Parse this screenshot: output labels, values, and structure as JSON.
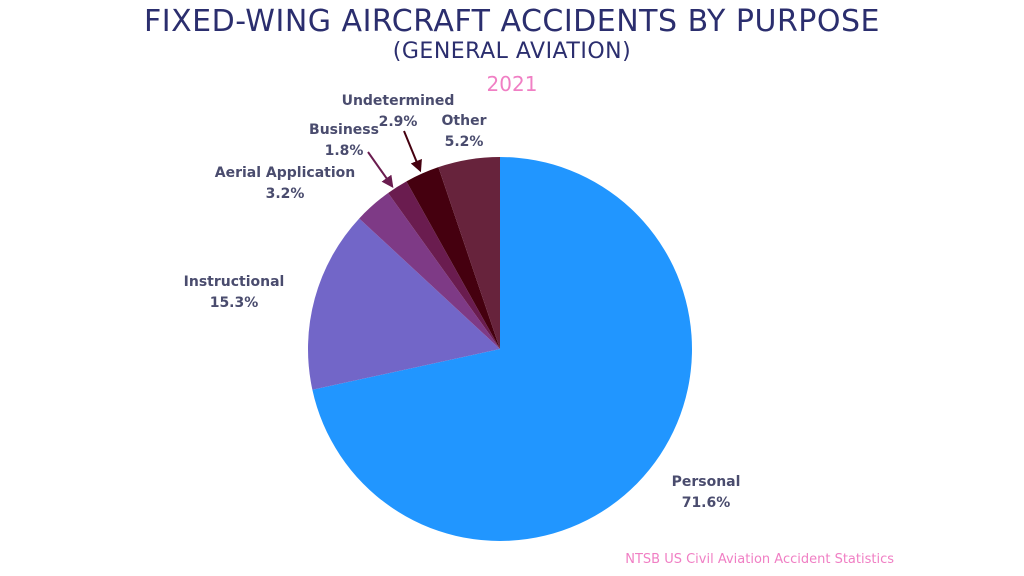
{
  "title": "FIXED-WING AIRCRAFT ACCIDENTS BY PURPOSE",
  "subtitle": "(GENERAL AVIATION)",
  "year": "2021",
  "source": "NTSB US Civil Aviation Accident Statistics",
  "chart_data": {
    "type": "pie",
    "title": "FIXED-WING AIRCRAFT ACCIDENTS BY PURPOSE",
    "subtitle": "(GENERAL AVIATION)",
    "slices": [
      {
        "label": "Personal",
        "value": 71.6,
        "display": "71.6%",
        "color": "#2196ff"
      },
      {
        "label": "Instructional",
        "value": 15.3,
        "display": "15.3%",
        "color": "#7266c8"
      },
      {
        "label": "Aerial Application",
        "value": 3.2,
        "display": "3.2%",
        "color": "#7e3a86"
      },
      {
        "label": "Business",
        "value": 1.8,
        "display": "1.8%",
        "color": "#6a1c4f"
      },
      {
        "label": "Undetermined",
        "value": 2.9,
        "display": "2.9%",
        "color": "#45000f"
      },
      {
        "label": "Other",
        "value": 5.2,
        "display": "5.2%",
        "color": "#67233c"
      }
    ]
  }
}
